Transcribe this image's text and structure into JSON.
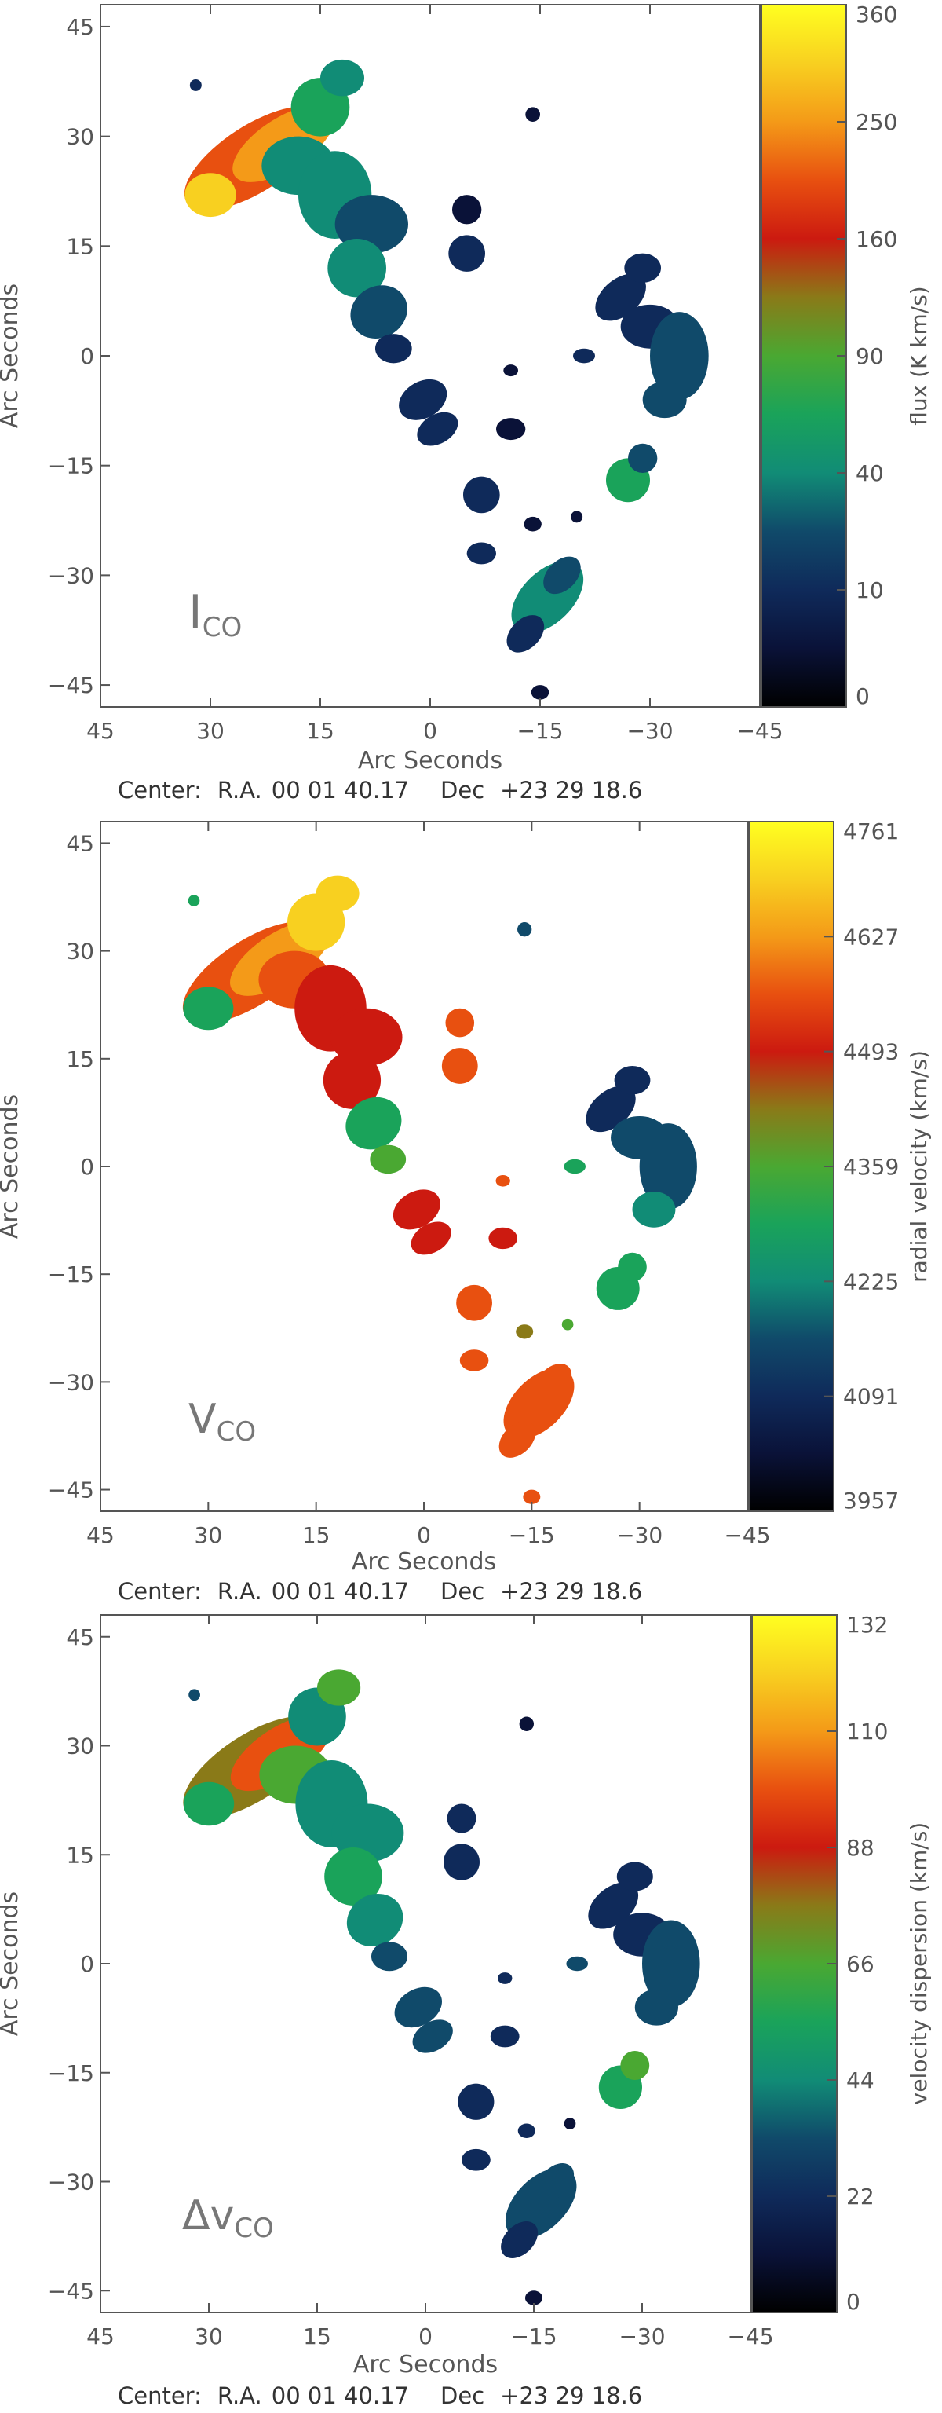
{
  "colors": {
    "colormap": [
      "#000000",
      "#0a1238",
      "#0f2a5a",
      "#104a6a",
      "#118c76",
      "#1aa35a",
      "#4aa832",
      "#8a7a18",
      "#cc1a10",
      "#e85010",
      "#f49a18",
      "#f8d020",
      "#ffff20"
    ],
    "axis": "#555555"
  },
  "chart_data": [
    {
      "type": "heatmap",
      "title": "",
      "map_label": "I",
      "map_label_sub": "CO",
      "xlabel": "Arc Seconds",
      "ylabel": "Arc Seconds",
      "xlim": [
        45,
        -45
      ],
      "ylim": [
        -48,
        48
      ],
      "x_ticks": [
        "45",
        "30",
        "15",
        "0",
        "−15",
        "−30",
        "−45"
      ],
      "y_ticks": [
        "45",
        "30",
        "15",
        "0",
        "−15",
        "−30",
        "−45"
      ],
      "colorbar_label": "flux (K km/s)",
      "colorbar_ticks": [
        "360",
        "250",
        "160",
        "90",
        "40",
        "10",
        "0"
      ],
      "colorbar_scale": "nonlinear",
      "center": {
        "prefix": "Center:",
        "ra_label": "R.A.",
        "ra": "00 01 40.17",
        "dec_label": "Dec",
        "dec": "+23 29 18.6"
      },
      "grid": false,
      "legend": "colorbar-right"
    },
    {
      "type": "heatmap",
      "title": "",
      "map_label": "V",
      "map_label_sub": "CO",
      "xlabel": "Arc Seconds",
      "ylabel": "Arc Seconds",
      "xlim": [
        45,
        -45
      ],
      "ylim": [
        -48,
        48
      ],
      "x_ticks": [
        "45",
        "30",
        "15",
        "0",
        "−15",
        "−30",
        "−45"
      ],
      "y_ticks": [
        "45",
        "30",
        "15",
        "0",
        "−15",
        "−30",
        "−45"
      ],
      "colorbar_label": "radial velocity (km/s)",
      "colorbar_ticks": [
        "4761",
        "4627",
        "4493",
        "4359",
        "4225",
        "4091",
        "3957"
      ],
      "colorbar_scale": "linear",
      "center": {
        "prefix": "Center:",
        "ra_label": "R.A.",
        "ra": "00 01 40.17",
        "dec_label": "Dec",
        "dec": "+23 29 18.6"
      },
      "grid": false,
      "legend": "colorbar-right"
    },
    {
      "type": "heatmap",
      "title": "",
      "map_label": "Δv",
      "map_label_sub": "CO",
      "xlabel": "Arc Seconds",
      "ylabel": "Arc Seconds",
      "xlim": [
        45,
        -45
      ],
      "ylim": [
        -48,
        48
      ],
      "x_ticks": [
        "45",
        "30",
        "15",
        "0",
        "−15",
        "−30",
        "−45"
      ],
      "y_ticks": [
        "45",
        "30",
        "15",
        "0",
        "−15",
        "−30",
        "−45"
      ],
      "colorbar_label": "velocity dispersion (km/s)",
      "colorbar_ticks": [
        "132",
        "110",
        "88",
        "66",
        "44",
        "22",
        "0"
      ],
      "colorbar_scale": "linear",
      "center": {
        "prefix": "Center:",
        "ra_label": "R.A.",
        "ra": "00 01 40.17",
        "dec_label": "Dec",
        "dec": "+23 29 18.6"
      },
      "grid": false,
      "legend": "colorbar-right"
    }
  ]
}
